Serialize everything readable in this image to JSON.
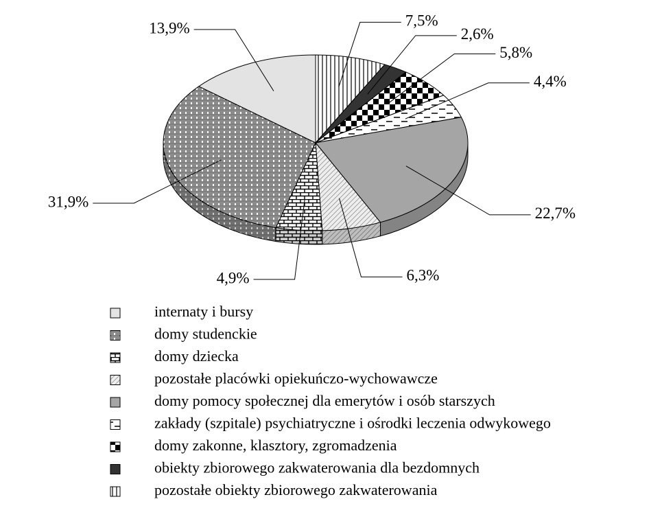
{
  "chart_data": {
    "type": "pie",
    "categories": [
      "internaty i bursy",
      "domy studenckie",
      "domy dziecka",
      "pozostałe placówki opiekuńczo-wychowawcze",
      "domy pomocy społecznej dla emerytów i osób starszych",
      "zakłady (szpitale) psychiatryczne i ośrodki leczenia odwykowego",
      "domy zakonne, klasztory, zgromadzenia",
      "obiekty zbiorowego zakwaterowania dla bezdomnych",
      "pozostałe obiekty zbiorowego zakwaterowania"
    ],
    "values": [
      13.9,
      31.9,
      4.9,
      6.3,
      22.7,
      4.4,
      5.8,
      2.6,
      7.5
    ],
    "value_labels": [
      "13,9%",
      "31,9%",
      "4,9%",
      "6,3%",
      "22,7%",
      "4,4%",
      "5,8%",
      "2,6%",
      "7,5%"
    ],
    "colors": [
      "#e3e3e3",
      "#ffffff",
      "#ffffff",
      "#eeeeee",
      "#a5a5a5",
      "#ffffff",
      "#ffffff",
      "#333333",
      "#ffffff"
    ]
  }
}
